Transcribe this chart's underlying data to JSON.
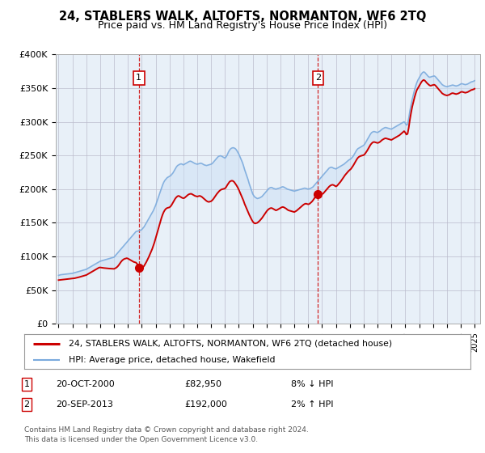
{
  "title": "24, STABLERS WALK, ALTOFTS, NORMANTON, WF6 2TQ",
  "subtitle": "Price paid vs. HM Land Registry's House Price Index (HPI)",
  "legend_line1": "24, STABLERS WALK, ALTOFTS, NORMANTON, WF6 2TQ (detached house)",
  "legend_line2": "HPI: Average price, detached house, Wakefield",
  "annotation1_label": "1",
  "annotation1_date": "20-OCT-2000",
  "annotation1_price": "£82,950",
  "annotation1_hpi": "8% ↓ HPI",
  "annotation2_label": "2",
  "annotation2_date": "20-SEP-2013",
  "annotation2_price": "£192,000",
  "annotation2_hpi": "2% ↑ HPI",
  "footer1": "Contains HM Land Registry data © Crown copyright and database right 2024.",
  "footer2": "This data is licensed under the Open Government Licence v3.0.",
  "red_color": "#cc0000",
  "blue_color": "#7aaadd",
  "fill_color": "#cce0f5",
  "background_color": "#ffffff",
  "plot_bg_color": "#e8f0f8",
  "grid_color": "#bbbbcc",
  "hpi_x": [
    1995.0,
    1995.083,
    1995.167,
    1995.25,
    1995.333,
    1995.417,
    1995.5,
    1995.583,
    1995.667,
    1995.75,
    1995.833,
    1995.917,
    1996.0,
    1996.083,
    1996.167,
    1996.25,
    1996.333,
    1996.417,
    1996.5,
    1996.583,
    1996.667,
    1996.75,
    1996.833,
    1996.917,
    1997.0,
    1997.083,
    1997.167,
    1997.25,
    1997.333,
    1997.417,
    1997.5,
    1997.583,
    1997.667,
    1997.75,
    1997.833,
    1997.917,
    1998.0,
    1998.083,
    1998.167,
    1998.25,
    1998.333,
    1998.417,
    1998.5,
    1998.583,
    1998.667,
    1998.75,
    1998.833,
    1998.917,
    1999.0,
    1999.083,
    1999.167,
    1999.25,
    1999.333,
    1999.417,
    1999.5,
    1999.583,
    1999.667,
    1999.75,
    1999.833,
    1999.917,
    2000.0,
    2000.083,
    2000.167,
    2000.25,
    2000.333,
    2000.417,
    2000.5,
    2000.583,
    2000.667,
    2000.75,
    2000.833,
    2000.917,
    2001.0,
    2001.083,
    2001.167,
    2001.25,
    2001.333,
    2001.417,
    2001.5,
    2001.583,
    2001.667,
    2001.75,
    2001.833,
    2001.917,
    2002.0,
    2002.083,
    2002.167,
    2002.25,
    2002.333,
    2002.417,
    2002.5,
    2002.583,
    2002.667,
    2002.75,
    2002.833,
    2002.917,
    2003.0,
    2003.083,
    2003.167,
    2003.25,
    2003.333,
    2003.417,
    2003.5,
    2003.583,
    2003.667,
    2003.75,
    2003.833,
    2003.917,
    2004.0,
    2004.083,
    2004.167,
    2004.25,
    2004.333,
    2004.417,
    2004.5,
    2004.583,
    2004.667,
    2004.75,
    2004.833,
    2004.917,
    2005.0,
    2005.083,
    2005.167,
    2005.25,
    2005.333,
    2005.417,
    2005.5,
    2005.583,
    2005.667,
    2005.75,
    2005.833,
    2005.917,
    2006.0,
    2006.083,
    2006.167,
    2006.25,
    2006.333,
    2006.417,
    2006.5,
    2006.583,
    2006.667,
    2006.75,
    2006.833,
    2006.917,
    2007.0,
    2007.083,
    2007.167,
    2007.25,
    2007.333,
    2007.417,
    2007.5,
    2007.583,
    2007.667,
    2007.75,
    2007.833,
    2007.917,
    2008.0,
    2008.083,
    2008.167,
    2008.25,
    2008.333,
    2008.417,
    2008.5,
    2008.583,
    2008.667,
    2008.75,
    2008.833,
    2008.917,
    2009.0,
    2009.083,
    2009.167,
    2009.25,
    2009.333,
    2009.417,
    2009.5,
    2009.583,
    2009.667,
    2009.75,
    2009.833,
    2009.917,
    2010.0,
    2010.083,
    2010.167,
    2010.25,
    2010.333,
    2010.417,
    2010.5,
    2010.583,
    2010.667,
    2010.75,
    2010.833,
    2010.917,
    2011.0,
    2011.083,
    2011.167,
    2011.25,
    2011.333,
    2011.417,
    2011.5,
    2011.583,
    2011.667,
    2011.75,
    2011.833,
    2011.917,
    2012.0,
    2012.083,
    2012.167,
    2012.25,
    2012.333,
    2012.417,
    2012.5,
    2012.583,
    2012.667,
    2012.75,
    2012.833,
    2012.917,
    2013.0,
    2013.083,
    2013.167,
    2013.25,
    2013.333,
    2013.417,
    2013.5,
    2013.583,
    2013.667,
    2013.75,
    2013.833,
    2013.917,
    2014.0,
    2014.083,
    2014.167,
    2014.25,
    2014.333,
    2014.417,
    2014.5,
    2014.583,
    2014.667,
    2014.75,
    2014.833,
    2014.917,
    2015.0,
    2015.083,
    2015.167,
    2015.25,
    2015.333,
    2015.417,
    2015.5,
    2015.583,
    2015.667,
    2015.75,
    2015.833,
    2015.917,
    2016.0,
    2016.083,
    2016.167,
    2016.25,
    2016.333,
    2016.417,
    2016.5,
    2016.583,
    2016.667,
    2016.75,
    2016.833,
    2016.917,
    2017.0,
    2017.083,
    2017.167,
    2017.25,
    2017.333,
    2017.417,
    2017.5,
    2017.583,
    2017.667,
    2017.75,
    2017.833,
    2017.917,
    2018.0,
    2018.083,
    2018.167,
    2018.25,
    2018.333,
    2018.417,
    2018.5,
    2018.583,
    2018.667,
    2018.75,
    2018.833,
    2018.917,
    2019.0,
    2019.083,
    2019.167,
    2019.25,
    2019.333,
    2019.417,
    2019.5,
    2019.583,
    2019.667,
    2019.75,
    2019.833,
    2019.917,
    2020.0,
    2020.083,
    2020.167,
    2020.25,
    2020.333,
    2020.417,
    2020.5,
    2020.583,
    2020.667,
    2020.75,
    2020.833,
    2020.917,
    2021.0,
    2021.083,
    2021.167,
    2021.25,
    2021.333,
    2021.417,
    2021.5,
    2021.583,
    2021.667,
    2021.75,
    2021.833,
    2021.917,
    2022.0,
    2022.083,
    2022.167,
    2022.25,
    2022.333,
    2022.417,
    2022.5,
    2022.583,
    2022.667,
    2022.75,
    2022.833,
    2022.917,
    2023.0,
    2023.083,
    2023.167,
    2023.25,
    2023.333,
    2023.417,
    2023.5,
    2023.583,
    2023.667,
    2023.75,
    2023.833,
    2023.917,
    2024.0,
    2024.083,
    2024.167,
    2024.25,
    2024.333,
    2024.417,
    2024.5,
    2024.583,
    2024.667,
    2024.75,
    2024.833,
    2024.917,
    2025.0
  ],
  "hpi_y": [
    72000,
    72500,
    73000,
    73200,
    73400,
    73600,
    73800,
    74000,
    74200,
    74400,
    74600,
    74800,
    75000,
    75500,
    76000,
    76500,
    77000,
    77500,
    78000,
    78500,
    79000,
    79500,
    80000,
    80500,
    81000,
    82000,
    83000,
    84000,
    85000,
    86000,
    87000,
    88000,
    89000,
    90000,
    91000,
    92000,
    93000,
    93500,
    94000,
    94500,
    95000,
    95500,
    96000,
    96500,
    97000,
    97500,
    98000,
    98500,
    99000,
    101000,
    103000,
    105000,
    107000,
    109000,
    111000,
    113000,
    115000,
    117000,
    119000,
    121000,
    123000,
    125000,
    127000,
    129000,
    131000,
    133000,
    135000,
    137000,
    137500,
    138000,
    138500,
    139000,
    140000,
    142000,
    144000,
    147000,
    150000,
    153000,
    156000,
    159000,
    162000,
    165000,
    168000,
    172000,
    176000,
    181000,
    186000,
    191000,
    196000,
    201000,
    206000,
    210000,
    213000,
    215000,
    217000,
    218000,
    219000,
    220000,
    222000,
    224000,
    227000,
    230000,
    233000,
    235000,
    236000,
    237000,
    237500,
    237000,
    236000,
    237000,
    238000,
    239000,
    240000,
    241000,
    241500,
    241000,
    240000,
    239000,
    238000,
    237500,
    237000,
    237500,
    238000,
    238500,
    238000,
    237000,
    236000,
    235500,
    235000,
    235500,
    236000,
    236500,
    237000,
    238000,
    240000,
    242000,
    244000,
    246000,
    248000,
    249000,
    249500,
    249000,
    248000,
    247000,
    246000,
    248000,
    251000,
    255000,
    258000,
    260000,
    261000,
    261500,
    261000,
    260000,
    258000,
    255000,
    252000,
    248000,
    244000,
    240000,
    235000,
    229000,
    224000,
    219000,
    214000,
    208000,
    203000,
    198000,
    193000,
    190000,
    188000,
    187000,
    186000,
    186500,
    187000,
    188000,
    189000,
    191000,
    193000,
    195000,
    197000,
    199000,
    201000,
    202000,
    202500,
    202000,
    201000,
    200500,
    200000,
    200500,
    201000,
    201500,
    202000,
    203000,
    203500,
    203000,
    202000,
    201000,
    200000,
    199500,
    199000,
    198500,
    198000,
    197500,
    197000,
    197500,
    198000,
    198500,
    199000,
    199500,
    200000,
    200500,
    201000,
    201500,
    201000,
    200500,
    200000,
    200500,
    201000,
    202000,
    203000,
    205000,
    207000,
    209000,
    211000,
    213000,
    215000,
    217000,
    219000,
    221000,
    223000,
    225000,
    227000,
    229000,
    231000,
    232000,
    232500,
    232000,
    231000,
    230500,
    230000,
    231000,
    232000,
    233000,
    234000,
    235000,
    236000,
    237000,
    238500,
    240000,
    241500,
    243000,
    244000,
    245000,
    247000,
    249000,
    252000,
    255000,
    258000,
    260000,
    261000,
    262000,
    263000,
    264000,
    265000,
    267000,
    270000,
    273000,
    276000,
    279000,
    282000,
    284000,
    285000,
    285500,
    285000,
    284500,
    284000,
    285000,
    286000,
    287500,
    289000,
    290000,
    291000,
    291500,
    291000,
    290500,
    290000,
    289500,
    289000,
    290000,
    291000,
    292000,
    293000,
    294000,
    295000,
    296000,
    297000,
    298000,
    299000,
    300000,
    298000,
    295000,
    296000,
    305000,
    316000,
    325000,
    333000,
    340000,
    347000,
    353000,
    358000,
    362000,
    365000,
    368000,
    371000,
    373000,
    374000,
    373000,
    371000,
    369000,
    367000,
    366000,
    366500,
    367000,
    367500,
    368000,
    367000,
    365000,
    363000,
    361000,
    359000,
    357000,
    355000,
    354000,
    353000,
    352500,
    352000,
    352500,
    353000,
    353500,
    354000,
    354500,
    354000,
    353500,
    353000,
    353500,
    354000,
    355000,
    356000,
    356500,
    356000,
    355500,
    355000,
    355500,
    356000,
    357000,
    358000,
    359000,
    359500,
    360000,
    361000
  ],
  "red_x": [
    1995.0,
    1995.083,
    1995.167,
    1995.25,
    1995.333,
    1995.417,
    1995.5,
    1995.583,
    1995.667,
    1995.75,
    1995.833,
    1995.917,
    1996.0,
    1996.083,
    1996.167,
    1996.25,
    1996.333,
    1996.417,
    1996.5,
    1996.583,
    1996.667,
    1996.75,
    1996.833,
    1996.917,
    1997.0,
    1997.083,
    1997.167,
    1997.25,
    1997.333,
    1997.417,
    1997.5,
    1997.583,
    1997.667,
    1997.75,
    1997.833,
    1997.917,
    1998.0,
    1998.083,
    1998.167,
    1998.25,
    1998.333,
    1998.417,
    1998.5,
    1998.583,
    1998.667,
    1998.75,
    1998.833,
    1998.917,
    1999.0,
    1999.083,
    1999.167,
    1999.25,
    1999.333,
    1999.417,
    1999.5,
    1999.583,
    1999.667,
    1999.75,
    1999.833,
    1999.917,
    2000.0,
    2000.083,
    2000.167,
    2000.25,
    2000.333,
    2000.417,
    2000.5,
    2000.583,
    2000.667,
    2000.75,
    2000.833,
    2000.917,
    2001.0,
    2001.083,
    2001.167,
    2001.25,
    2001.333,
    2001.417,
    2001.5,
    2001.583,
    2001.667,
    2001.75,
    2001.833,
    2001.917,
    2002.0,
    2002.083,
    2002.167,
    2002.25,
    2002.333,
    2002.417,
    2002.5,
    2002.583,
    2002.667,
    2002.75,
    2002.833,
    2002.917,
    2003.0,
    2003.083,
    2003.167,
    2003.25,
    2003.333,
    2003.417,
    2003.5,
    2003.583,
    2003.667,
    2003.75,
    2003.833,
    2003.917,
    2004.0,
    2004.083,
    2004.167,
    2004.25,
    2004.333,
    2004.417,
    2004.5,
    2004.583,
    2004.667,
    2004.75,
    2004.833,
    2004.917,
    2005.0,
    2005.083,
    2005.167,
    2005.25,
    2005.333,
    2005.417,
    2005.5,
    2005.583,
    2005.667,
    2005.75,
    2005.833,
    2005.917,
    2006.0,
    2006.083,
    2006.167,
    2006.25,
    2006.333,
    2006.417,
    2006.5,
    2006.583,
    2006.667,
    2006.75,
    2006.833,
    2006.917,
    2007.0,
    2007.083,
    2007.167,
    2007.25,
    2007.333,
    2007.417,
    2007.5,
    2007.583,
    2007.667,
    2007.75,
    2007.833,
    2007.917,
    2008.0,
    2008.083,
    2008.167,
    2008.25,
    2008.333,
    2008.417,
    2008.5,
    2008.583,
    2008.667,
    2008.75,
    2008.833,
    2008.917,
    2009.0,
    2009.083,
    2009.167,
    2009.25,
    2009.333,
    2009.417,
    2009.5,
    2009.583,
    2009.667,
    2009.75,
    2009.833,
    2009.917,
    2010.0,
    2010.083,
    2010.167,
    2010.25,
    2010.333,
    2010.417,
    2010.5,
    2010.583,
    2010.667,
    2010.75,
    2010.833,
    2010.917,
    2011.0,
    2011.083,
    2011.167,
    2011.25,
    2011.333,
    2011.417,
    2011.5,
    2011.583,
    2011.667,
    2011.75,
    2011.833,
    2011.917,
    2012.0,
    2012.083,
    2012.167,
    2012.25,
    2012.333,
    2012.417,
    2012.5,
    2012.583,
    2012.667,
    2012.75,
    2012.833,
    2012.917,
    2013.0,
    2013.083,
    2013.167,
    2013.25,
    2013.333,
    2013.417,
    2013.5,
    2013.583,
    2013.667,
    2013.75,
    2013.833,
    2013.917,
    2014.0,
    2014.083,
    2014.167,
    2014.25,
    2014.333,
    2014.417,
    2014.5,
    2014.583,
    2014.667,
    2014.75,
    2014.833,
    2014.917,
    2015.0,
    2015.083,
    2015.167,
    2015.25,
    2015.333,
    2015.417,
    2015.5,
    2015.583,
    2015.667,
    2015.75,
    2015.833,
    2015.917,
    2016.0,
    2016.083,
    2016.167,
    2016.25,
    2016.333,
    2016.417,
    2016.5,
    2016.583,
    2016.667,
    2016.75,
    2016.833,
    2016.917,
    2017.0,
    2017.083,
    2017.167,
    2017.25,
    2017.333,
    2017.417,
    2017.5,
    2017.583,
    2017.667,
    2017.75,
    2017.833,
    2017.917,
    2018.0,
    2018.083,
    2018.167,
    2018.25,
    2018.333,
    2018.417,
    2018.5,
    2018.583,
    2018.667,
    2018.75,
    2018.833,
    2018.917,
    2019.0,
    2019.083,
    2019.167,
    2019.25,
    2019.333,
    2019.417,
    2019.5,
    2019.583,
    2019.667,
    2019.75,
    2019.833,
    2019.917,
    2020.0,
    2020.083,
    2020.167,
    2020.25,
    2020.333,
    2020.417,
    2020.5,
    2020.583,
    2020.667,
    2020.75,
    2020.833,
    2020.917,
    2021.0,
    2021.083,
    2021.167,
    2021.25,
    2021.333,
    2021.417,
    2021.5,
    2021.583,
    2021.667,
    2021.75,
    2021.833,
    2021.917,
    2022.0,
    2022.083,
    2022.167,
    2022.25,
    2022.333,
    2022.417,
    2022.5,
    2022.583,
    2022.667,
    2022.75,
    2022.833,
    2022.917,
    2023.0,
    2023.083,
    2023.167,
    2023.25,
    2023.333,
    2023.417,
    2023.5,
    2023.583,
    2023.667,
    2023.75,
    2023.833,
    2023.917,
    2024.0,
    2024.083,
    2024.167,
    2024.25,
    2024.333,
    2024.417,
    2024.5,
    2024.583,
    2024.667,
    2024.75,
    2024.833,
    2024.917,
    2025.0
  ],
  "red_y": [
    65000,
    65200,
    65400,
    65600,
    65800,
    66000,
    66200,
    66400,
    66600,
    66800,
    67000,
    67200,
    67400,
    67600,
    67800,
    68200,
    68600,
    69000,
    69500,
    70000,
    70500,
    71000,
    71500,
    72000,
    72500,
    73500,
    74500,
    75500,
    76500,
    77500,
    78500,
    79500,
    80500,
    81500,
    82500,
    83500,
    83800,
    83500,
    83200,
    83000,
    82800,
    82600,
    82400,
    82200,
    82100,
    82000,
    81900,
    81800,
    81700,
    82500,
    83500,
    85000,
    87000,
    89500,
    92000,
    94000,
    95500,
    96500,
    97000,
    97500,
    97000,
    96000,
    95000,
    94000,
    93000,
    92000,
    91500,
    91000,
    89000,
    87000,
    85500,
    84000,
    83500,
    84000,
    86000,
    89000,
    92000,
    95500,
    99000,
    103000,
    107000,
    111000,
    116000,
    121000,
    127000,
    133000,
    139000,
    145000,
    151000,
    157000,
    162000,
    166000,
    169000,
    171000,
    172000,
    172500,
    173000,
    174500,
    177000,
    180000,
    183000,
    186000,
    188000,
    189500,
    190000,
    189000,
    188000,
    187000,
    186500,
    187000,
    188500,
    190000,
    191500,
    192500,
    193000,
    193000,
    192000,
    191000,
    190000,
    189500,
    189000,
    189500,
    190000,
    189500,
    188500,
    187000,
    185500,
    184000,
    182500,
    181500,
    181000,
    181500,
    182000,
    183500,
    185500,
    188000,
    190500,
    193000,
    195000,
    197000,
    198500,
    199500,
    200000,
    200500,
    201000,
    203000,
    206000,
    208500,
    211000,
    212000,
    212500,
    212000,
    210500,
    208000,
    205500,
    202500,
    199000,
    195000,
    191000,
    187000,
    183000,
    178000,
    174000,
    170000,
    166000,
    162000,
    158500,
    155000,
    152000,
    150000,
    149000,
    149500,
    150000,
    151500,
    153000,
    155000,
    157000,
    159500,
    162000,
    164500,
    167000,
    169000,
    170500,
    171500,
    172000,
    171500,
    170500,
    169500,
    168500,
    169000,
    170000,
    171000,
    172000,
    173000,
    173500,
    173000,
    172000,
    171000,
    169500,
    168500,
    168000,
    167500,
    167000,
    166500,
    166000,
    167000,
    168000,
    169500,
    171000,
    172500,
    174000,
    175500,
    177000,
    178000,
    178500,
    178000,
    177500,
    178000,
    179500,
    181000,
    183000,
    185500,
    188000,
    190500,
    192000,
    193000,
    193500,
    193000,
    192500,
    193500,
    195500,
    197500,
    199500,
    201500,
    203500,
    205000,
    206000,
    206500,
    206000,
    205000,
    204000,
    205000,
    207000,
    209000,
    211000,
    213500,
    216000,
    218500,
    221000,
    223000,
    225000,
    227000,
    228500,
    230000,
    232500,
    235000,
    238000,
    241000,
    244000,
    246500,
    248000,
    249000,
    249500,
    250000,
    250500,
    252000,
    254500,
    257000,
    260000,
    263000,
    266000,
    268000,
    269500,
    270000,
    269500,
    269000,
    268500,
    269000,
    270000,
    271500,
    273000,
    274000,
    275000,
    275500,
    275000,
    274500,
    274000,
    273500,
    273000,
    274000,
    275000,
    276000,
    277000,
    278000,
    279000,
    280000,
    281500,
    283000,
    284500,
    286000,
    284000,
    281000,
    282000,
    291000,
    303000,
    313000,
    322000,
    329000,
    336000,
    342000,
    347000,
    350000,
    353000,
    356000,
    359000,
    361000,
    362000,
    361000,
    359000,
    357000,
    355500,
    354000,
    353500,
    354000,
    354500,
    355000,
    354000,
    352000,
    350000,
    348000,
    346000,
    344000,
    342000,
    341000,
    340000,
    339500,
    339000,
    339500,
    340000,
    341000,
    342000,
    342500,
    342000,
    341500,
    341000,
    341500,
    342000,
    343000,
    344000,
    344500,
    344000,
    343500,
    343000,
    343500,
    344000,
    345000,
    346000,
    347000,
    347500,
    348000,
    349000
  ],
  "sale1_x": 2000.79,
  "sale1_y": 82950,
  "sale2_x": 2013.71,
  "sale2_y": 192000,
  "xlim": [
    1994.8,
    2025.4
  ],
  "ylim": [
    0,
    400000
  ],
  "yticks": [
    0,
    50000,
    100000,
    150000,
    200000,
    250000,
    300000,
    350000,
    400000
  ],
  "ytick_labels": [
    "£0",
    "£50K",
    "£100K",
    "£150K",
    "£200K",
    "£250K",
    "£300K",
    "£350K",
    "£400K"
  ],
  "xticks": [
    1995,
    1996,
    1997,
    1998,
    1999,
    2000,
    2001,
    2002,
    2003,
    2004,
    2005,
    2006,
    2007,
    2008,
    2009,
    2010,
    2011,
    2012,
    2013,
    2014,
    2015,
    2016,
    2017,
    2018,
    2019,
    2020,
    2021,
    2022,
    2023,
    2024,
    2025
  ]
}
